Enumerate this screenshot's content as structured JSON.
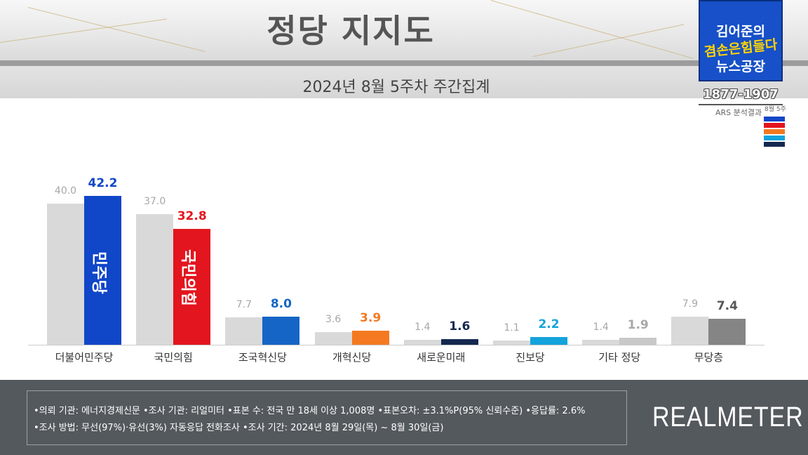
{
  "header": {
    "title": "정당 지지도",
    "subtitle": "2024년 8월 5주차 주간집계"
  },
  "channel": {
    "line1": "김어준의",
    "line2": "겸손은힘들다",
    "line3": "뉴스공장",
    "phone": "1877-1907",
    "ars_label": "ARS 분석결과",
    "week_label": "8월 5주"
  },
  "colors": {
    "previous": "#d9d9d9",
    "minjoo": "#1046c8",
    "ppp": "#e3151e",
    "rebuild": "#1565c6",
    "reform": "#f47920",
    "newfuture": "#14284f",
    "progressive": "#14a3dc",
    "other": "#c8c8c8",
    "none": "#858585"
  },
  "party_logos": {
    "minjoo": "민주당",
    "ppp": "국민의힘"
  },
  "chart_data": {
    "type": "bar",
    "title": "정당 지지도",
    "subtitle": "2024년 8월 5주차 주간집계",
    "categories": [
      "더불어민주당",
      "국민의힘",
      "조국혁신당",
      "개혁신당",
      "새로운미래",
      "진보당",
      "기타 정당",
      "무당층"
    ],
    "series": [
      {
        "values": [
          40.0,
          37.0,
          7.7,
          3.6,
          1.4,
          1.1,
          1.4,
          7.9
        ]
      },
      {
        "values": [
          42.2,
          32.8,
          8.0,
          3.9,
          1.6,
          2.2,
          1.9,
          7.4
        ]
      }
    ],
    "previous_labels": [
      "40.0",
      "37.0",
      "7.7",
      "3.6",
      "1.4",
      "1.1",
      "1.4",
      "7.9"
    ],
    "current_labels": [
      "42.2",
      "32.8",
      "8.0",
      "3.9",
      "1.6",
      "2.2",
      "1.9",
      "7.4"
    ],
    "current_colors": [
      "#1046c8",
      "#e3151e",
      "#1565c6",
      "#f47920",
      "#14284f",
      "#14a3dc",
      "#c8c8c8",
      "#858585"
    ],
    "current_label_colors": [
      "#1046c8",
      "#e3151e",
      "#1565c6",
      "#f47920",
      "#14284f",
      "#14a3dc",
      "#a8a8a8",
      "#555555"
    ],
    "ylim": [
      0,
      50
    ],
    "grid": false,
    "legend": "none"
  },
  "footer": {
    "note_line1": "•의뢰 기관: 에너지경제신문  •조사 기관: 리얼미터 •표본 수: 전국 만 18세 이상 1,008명  •표본오차: ±3.1%P(95% 신뢰수준) •응답률: 2.6%",
    "note_line2": "•조사 방법: 무선(97%)·유선(3%) 자동응답 전화조사  •조사 기간: 2024년 8월 29일(목) ~ 8월 30일(금)",
    "brand": "REALMETER"
  }
}
